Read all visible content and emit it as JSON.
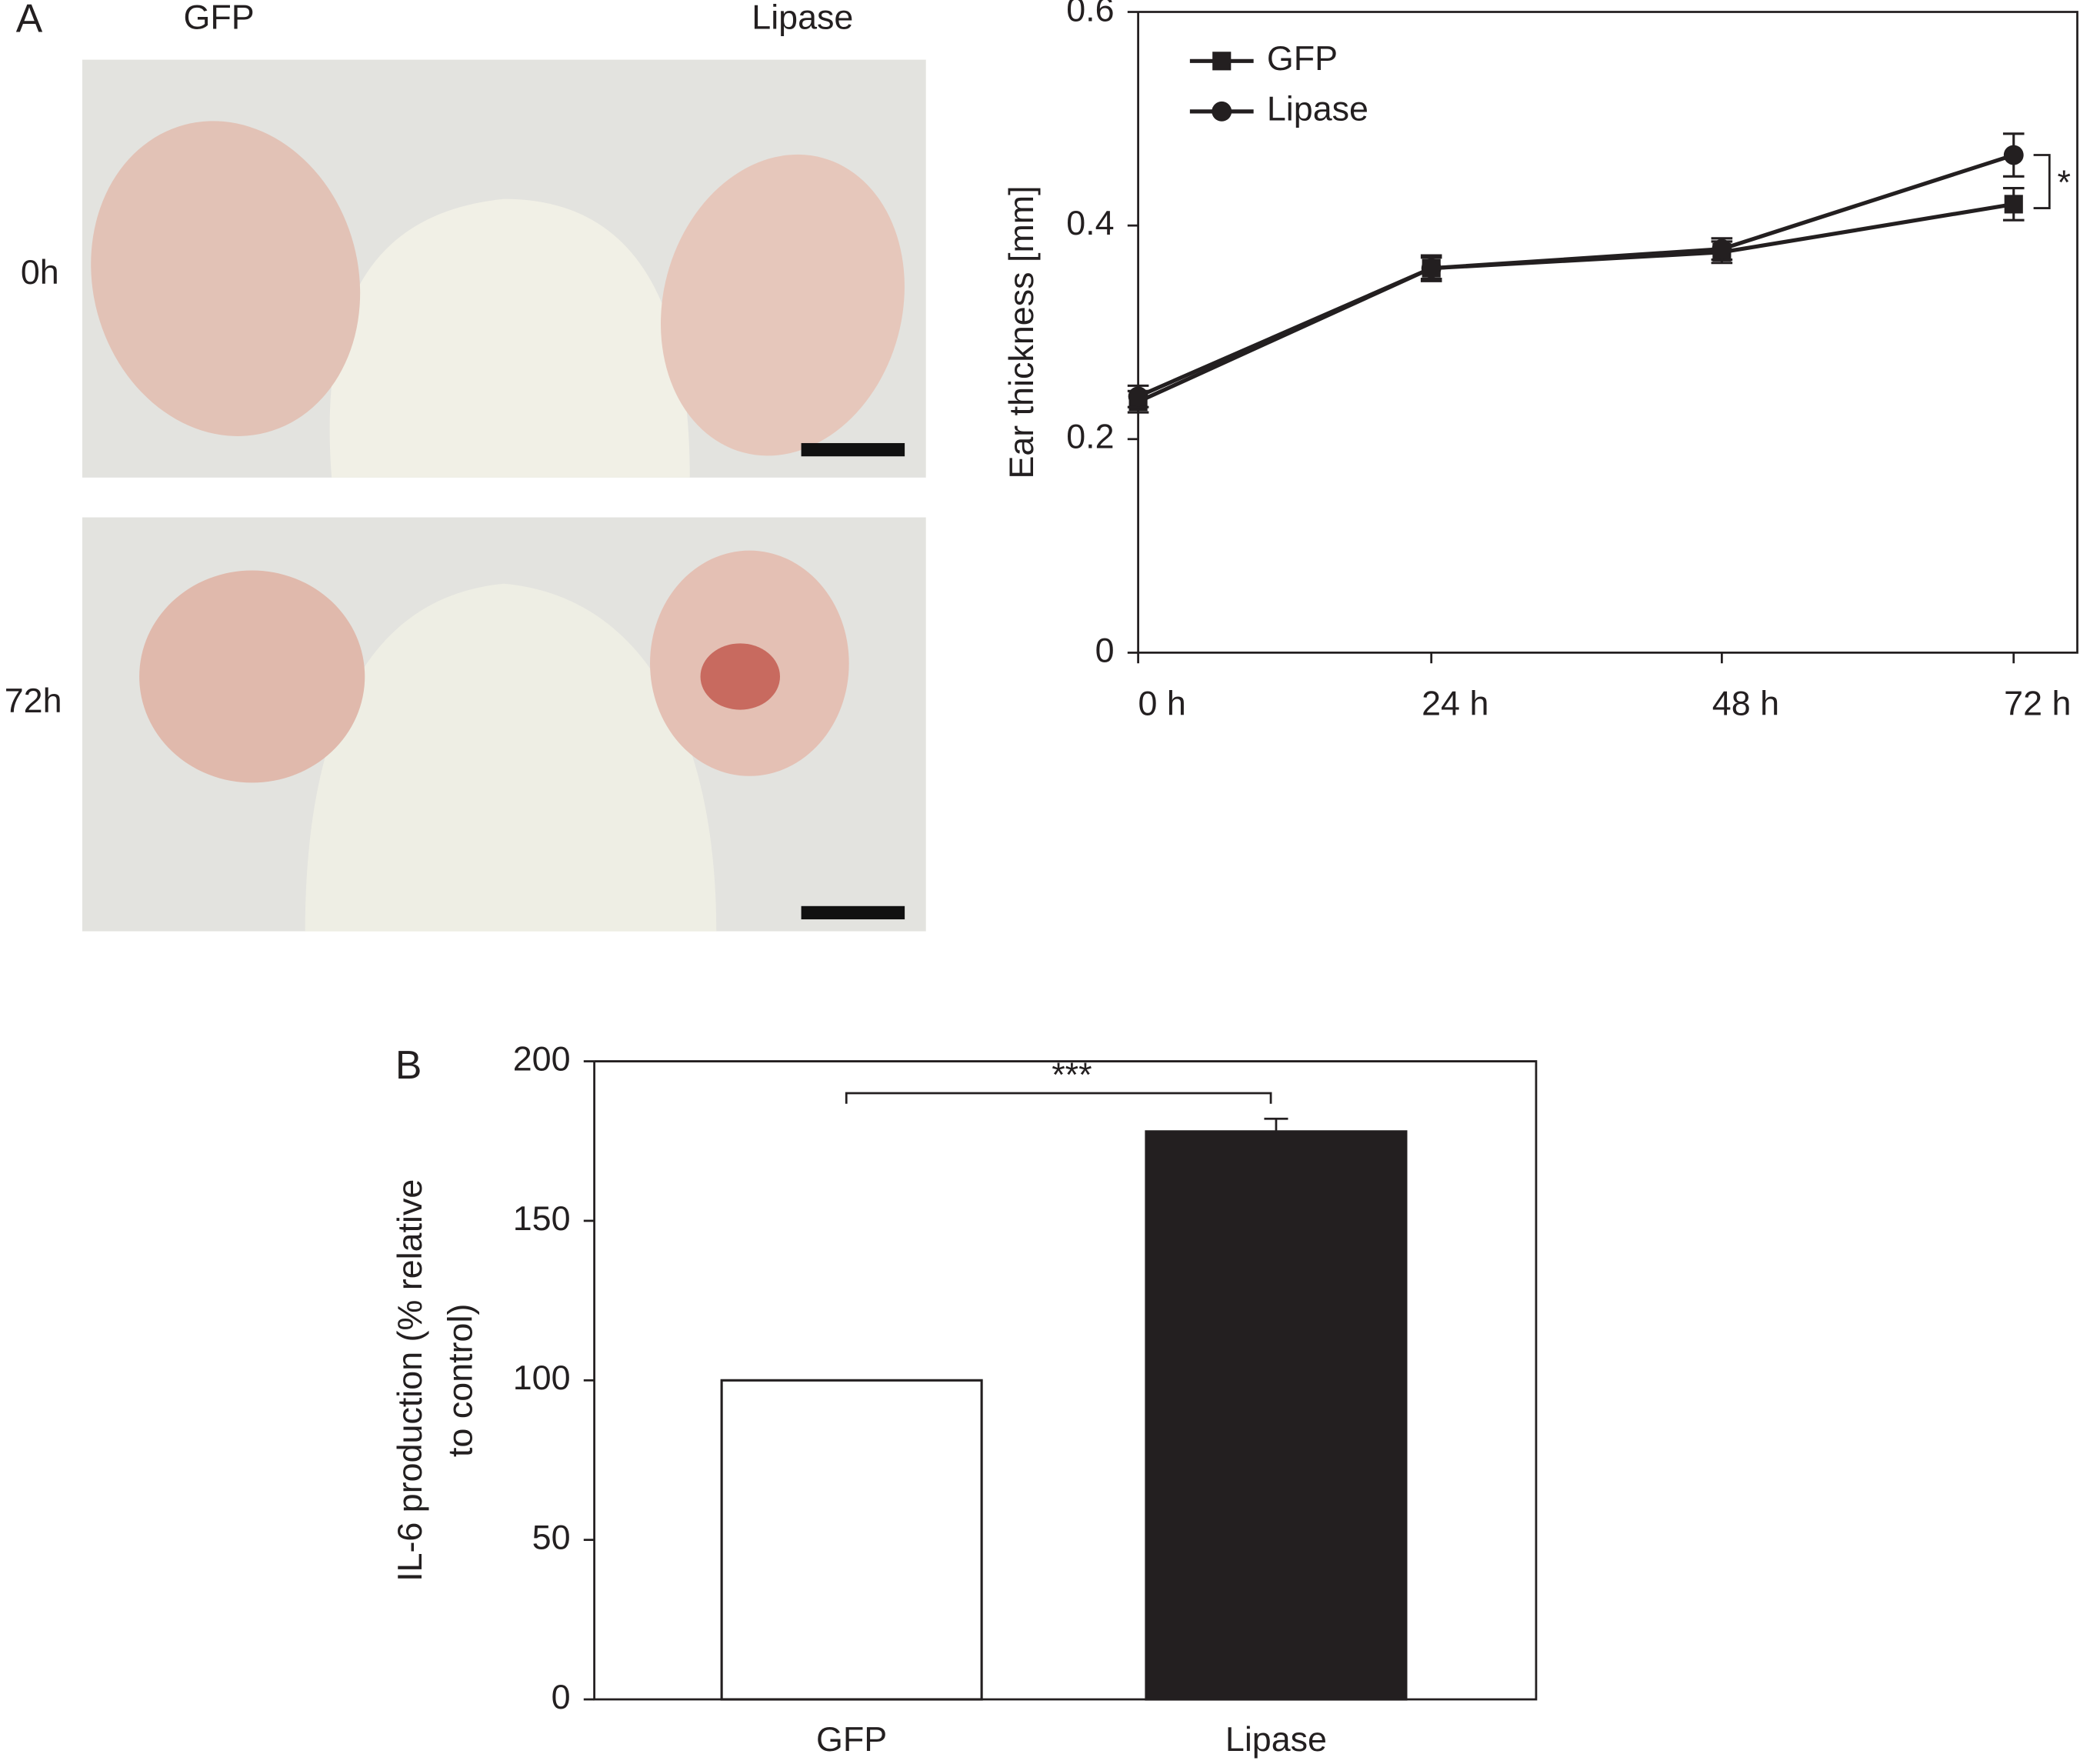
{
  "figure": {
    "panel_a_label": "A",
    "photo_columns": [
      "GFP",
      "Lipase"
    ],
    "photo_rows": [
      "0h",
      "72h"
    ],
    "panel_b_label": "B"
  },
  "chart_data": [
    {
      "type": "line",
      "ylabel": "Ear thickness [mm]",
      "categories": [
        "0 h",
        "24 h",
        "48 h",
        "72 h"
      ],
      "series": [
        {
          "name": "GFP",
          "color": "#231f20",
          "marker": "square",
          "values": [
            0.235,
            0.36,
            0.375,
            0.42
          ],
          "errors": [
            0.01,
            0.012,
            0.01,
            0.015
          ]
        },
        {
          "name": "Lipase",
          "color": "#231f20",
          "marker": "circle",
          "values": [
            0.24,
            0.36,
            0.378,
            0.466
          ],
          "errors": [
            0.01,
            0.01,
            0.01,
            0.02
          ]
        }
      ],
      "ylim": [
        0,
        0.6
      ],
      "yticks": [
        0,
        0.2,
        0.4,
        0.6
      ],
      "legend": "upper left",
      "annotation": "*"
    },
    {
      "type": "bar",
      "ylabel": [
        "IL-6 production (% relative",
        "to control)"
      ],
      "categories": [
        "GFP",
        "Lipase"
      ],
      "values": [
        100,
        178
      ],
      "errors": [
        null,
        4
      ],
      "colors": [
        "#ffffff",
        "#231f20"
      ],
      "ylim": [
        0,
        200
      ],
      "yticks": [
        0,
        50,
        100,
        150,
        200
      ],
      "annotation": "***"
    }
  ]
}
